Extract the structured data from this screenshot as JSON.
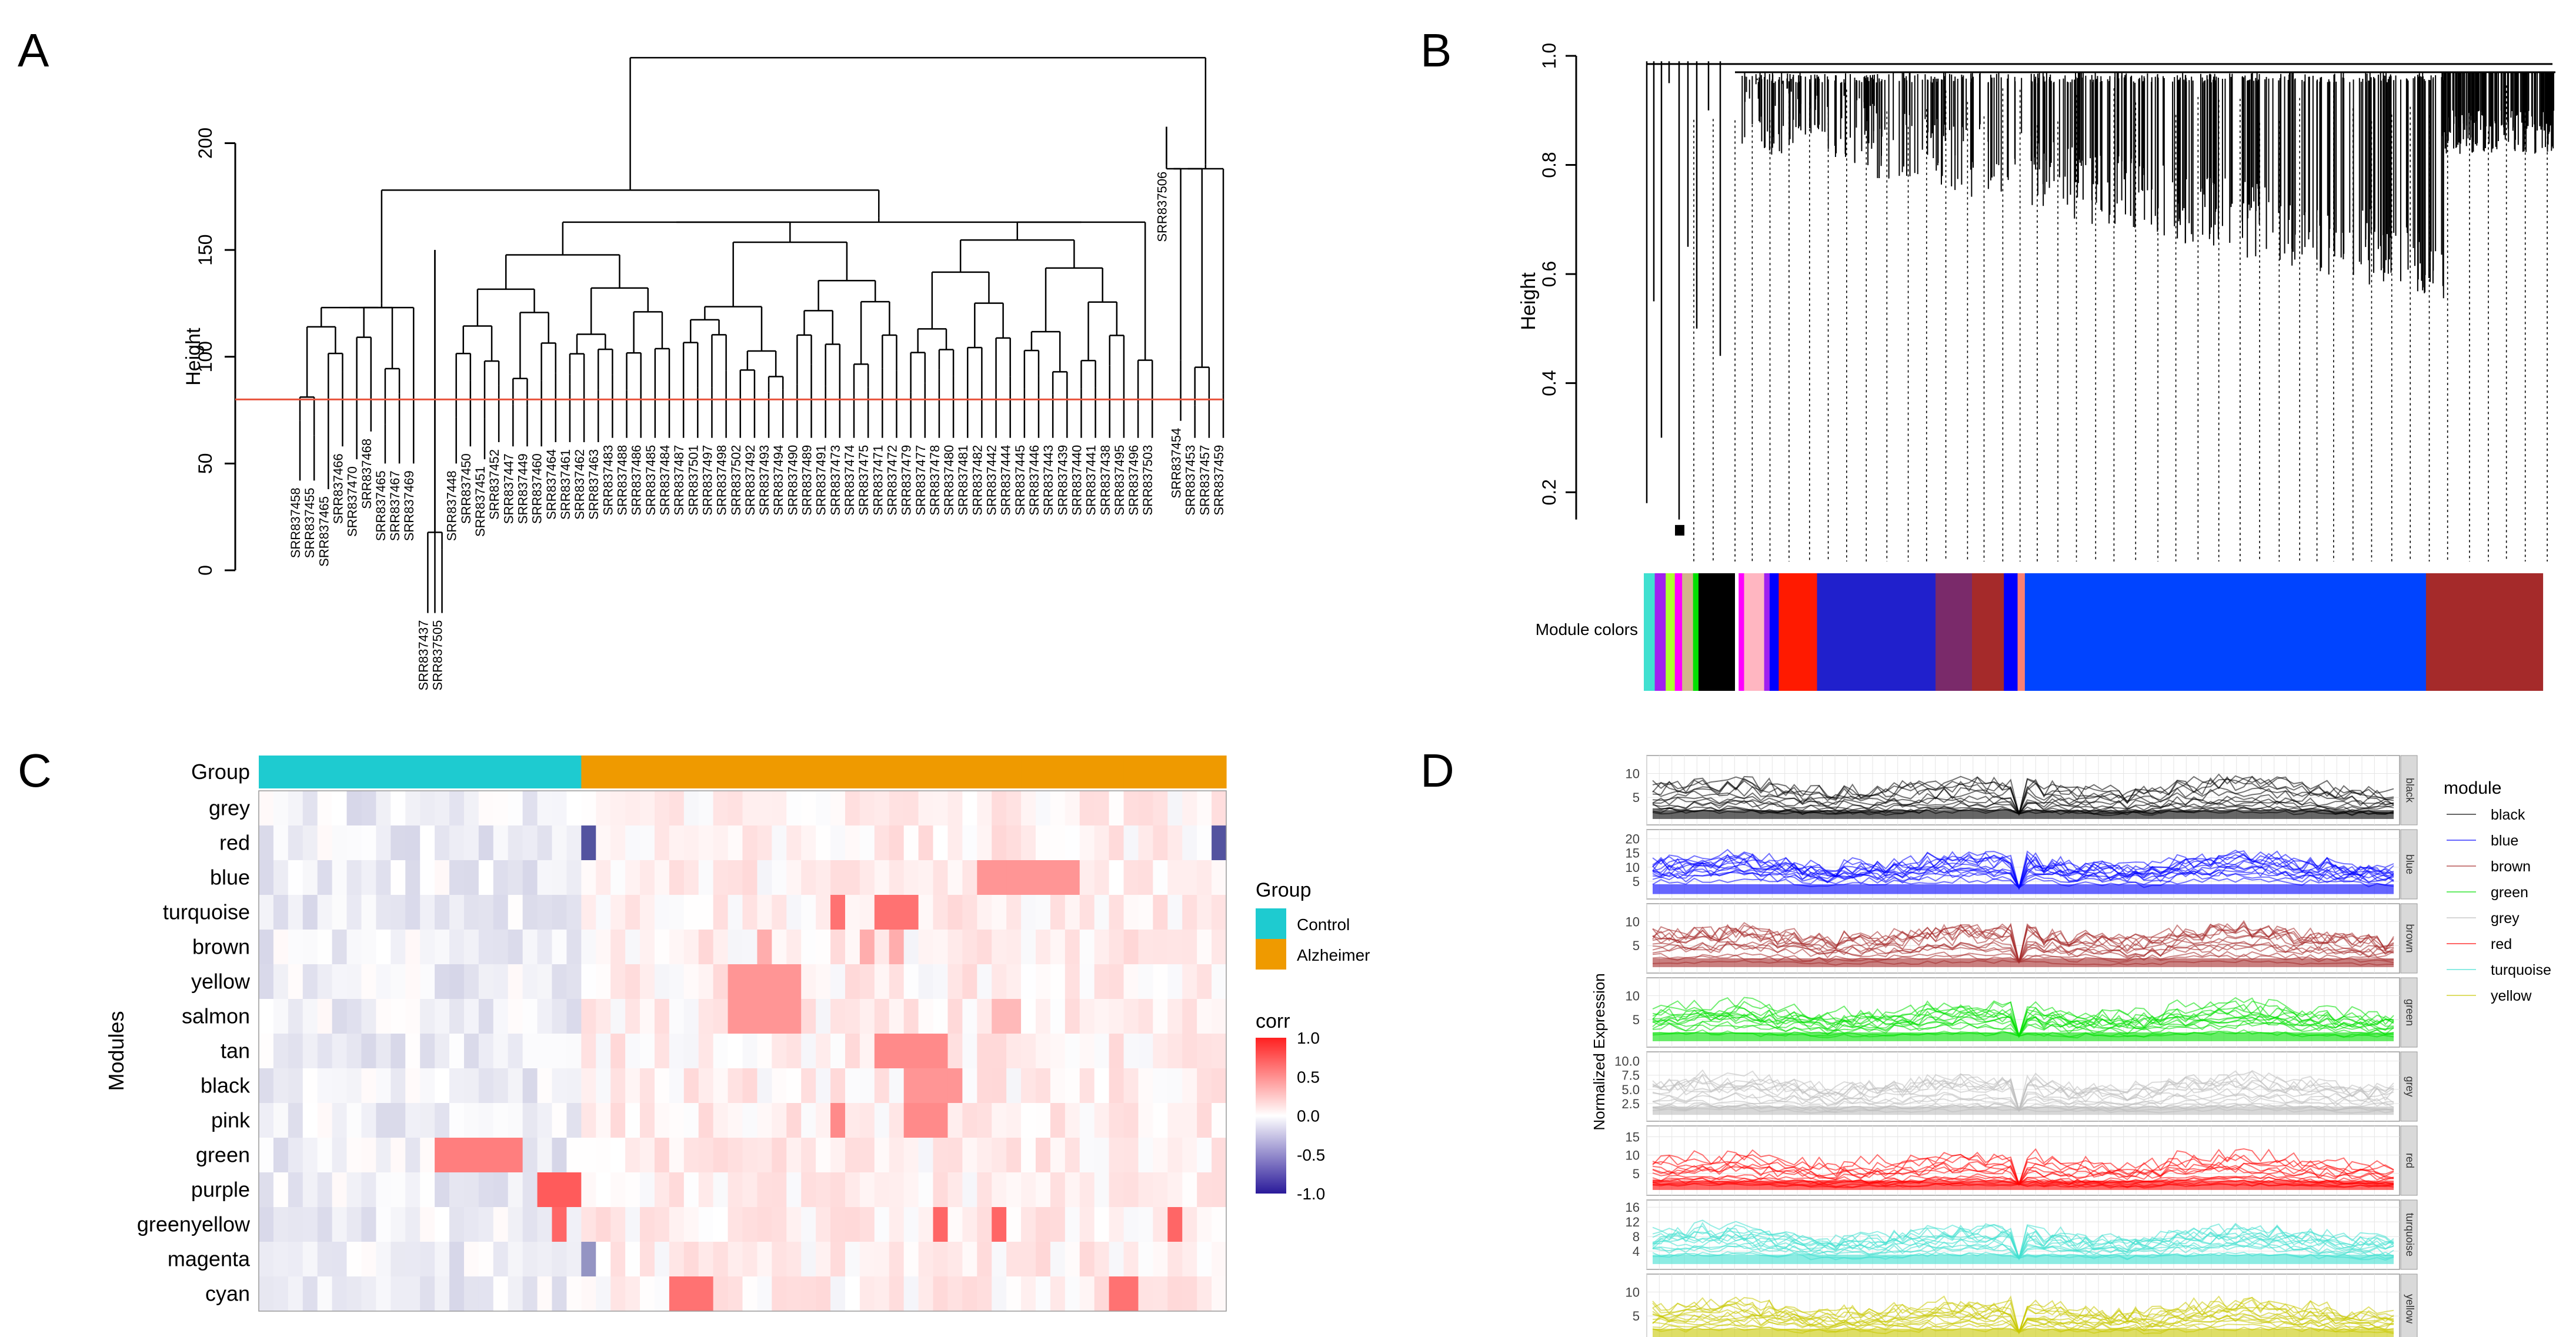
{
  "panels": {
    "a": {
      "letter": "A"
    },
    "b": {
      "letter": "B"
    },
    "c": {
      "letter": "C"
    },
    "d": {
      "letter": "D"
    }
  },
  "colors": {
    "black": "#000000",
    "blue": "#0000ff",
    "brown": "#a52a2a",
    "green": "#00e000",
    "grey": "#bdbdbd",
    "red": "#ff0000",
    "turquoise": "#40e0d0",
    "yellow": "#c8c800",
    "pink": "#ffb6c1",
    "purple": "#a020f0",
    "greenyellow": "#adff2f",
    "magenta": "#ff00ff",
    "tan": "#d2b48c",
    "salmon": "#fa8072",
    "cyan": "#00ffff",
    "control": "#1ecbd0",
    "alzheimer": "#ef9a00",
    "cutline": "#e8533c"
  },
  "chart_data": [
    {
      "type": "dendrogram",
      "panel": "A",
      "ylabel": "Height",
      "yticks": [
        0,
        50,
        100,
        150,
        200
      ],
      "ylim": [
        0,
        245
      ],
      "cut_height": 80,
      "cut_color": "#e8533c",
      "leaves": [
        {
          "label": "SRR837458",
          "h": 42
        },
        {
          "label": "SRR837455",
          "h": 42
        },
        {
          "label": "SRR837465",
          "h": 38
        },
        {
          "label": "SRR837466",
          "h": 58
        },
        {
          "label": "SRR837470",
          "h": 52
        },
        {
          "label": "SRR837468",
          "h": 65
        },
        {
          "label": "SRR837465",
          "h": 50
        },
        {
          "label": "SRR837467",
          "h": 50
        },
        {
          "label": "SRR837469",
          "h": 50
        },
        {
          "label": "SRR837437",
          "h": -20
        },
        {
          "label": "SRR837505",
          "h": -20
        },
        {
          "label": "SRR837448",
          "h": 50
        },
        {
          "label": "SRR837450",
          "h": 58
        },
        {
          "label": "SRR837451",
          "h": 52
        },
        {
          "label": "SRR837452",
          "h": 60
        },
        {
          "label": "SRR837447",
          "h": 58
        },
        {
          "label": "SRR837449",
          "h": 58
        },
        {
          "label": "SRR837460",
          "h": 58
        },
        {
          "label": "SRR837464",
          "h": 60
        },
        {
          "label": "SRR837461",
          "h": 60
        },
        {
          "label": "SRR837462",
          "h": 60
        },
        {
          "label": "SRR837463",
          "h": 60
        },
        {
          "label": "SRR837483",
          "h": 62
        },
        {
          "label": "SRR837488",
          "h": 62
        },
        {
          "label": "SRR837486",
          "h": 62
        },
        {
          "label": "SRR837485",
          "h": 62
        },
        {
          "label": "SRR837484",
          "h": 62
        },
        {
          "label": "SRR837487",
          "h": 62
        },
        {
          "label": "SRR837501",
          "h": 62
        },
        {
          "label": "SRR837497",
          "h": 62
        },
        {
          "label": "SRR837498",
          "h": 62
        },
        {
          "label": "SRR837502",
          "h": 62
        },
        {
          "label": "SRR837492",
          "h": 62
        },
        {
          "label": "SRR837493",
          "h": 62
        },
        {
          "label": "SRR837494",
          "h": 62
        },
        {
          "label": "SRR837490",
          "h": 62
        },
        {
          "label": "SRR837489",
          "h": 62
        },
        {
          "label": "SRR837491",
          "h": 62
        },
        {
          "label": "SRR837473",
          "h": 62
        },
        {
          "label": "SRR837474",
          "h": 62
        },
        {
          "label": "SRR837475",
          "h": 62
        },
        {
          "label": "SRR837471",
          "h": 62
        },
        {
          "label": "SRR837472",
          "h": 62
        },
        {
          "label": "SRR837479",
          "h": 62
        },
        {
          "label": "SRR837477",
          "h": 62
        },
        {
          "label": "SRR837478",
          "h": 62
        },
        {
          "label": "SRR837480",
          "h": 62
        },
        {
          "label": "SRR837481",
          "h": 62
        },
        {
          "label": "SRR837482",
          "h": 62
        },
        {
          "label": "SRR837442",
          "h": 62
        },
        {
          "label": "SRR837444",
          "h": 62
        },
        {
          "label": "SRR837445",
          "h": 62
        },
        {
          "label": "SRR837446",
          "h": 62
        },
        {
          "label": "SRR837443",
          "h": 62
        },
        {
          "label": "SRR837439",
          "h": 62
        },
        {
          "label": "SRR837440",
          "h": 62
        },
        {
          "label": "SRR837441",
          "h": 62
        },
        {
          "label": "SRR837438",
          "h": 62
        },
        {
          "label": "SRR837495",
          "h": 62
        },
        {
          "label": "SRR837496",
          "h": 62
        },
        {
          "label": "SRR837503",
          "h": 62
        },
        {
          "label": "SRR837506",
          "h": 190
        },
        {
          "label": "SRR837454",
          "h": 70
        },
        {
          "label": "SRR837453",
          "h": 62
        },
        {
          "label": "SRR837457",
          "h": 62
        },
        {
          "label": "SRR837459",
          "h": 62
        }
      ]
    },
    {
      "type": "dendrogram",
      "panel": "B",
      "ylabel": "Height",
      "yticks": [
        0.2,
        0.4,
        0.6,
        0.8,
        1.0
      ],
      "ylim": [
        0.1,
        1.0
      ],
      "colorbar_label": "Module colors",
      "module_bar": [
        {
          "color": "#40e0d0",
          "width": 0.012
        },
        {
          "color": "#a020f0",
          "width": 0.012
        },
        {
          "color": "#adff2f",
          "width": 0.01
        },
        {
          "color": "#ff00ff",
          "width": 0.008
        },
        {
          "color": "#d2b48c",
          "width": 0.012
        },
        {
          "color": "#00e000",
          "width": 0.006
        },
        {
          "color": "#000000",
          "width": 0.04
        },
        {
          "color": "#ffffff",
          "width": 0.004
        },
        {
          "color": "#ff00ff",
          "width": 0.006
        },
        {
          "color": "#ffb6c1",
          "width": 0.022
        },
        {
          "color": "#a020f0",
          "width": 0.006
        },
        {
          "color": "#0000ff",
          "width": 0.01
        },
        {
          "color": "#ff1a00",
          "width": 0.042
        },
        {
          "color": "#2020cc",
          "width": 0.13
        },
        {
          "color": "#7a2a6a",
          "width": 0.04
        },
        {
          "color": "#a52a2a",
          "width": 0.035
        },
        {
          "color": "#0000ff",
          "width": 0.015
        },
        {
          "color": "#fa8072",
          "width": 0.008
        },
        {
          "color": "#0044ff",
          "width": 0.44
        },
        {
          "color": "#a52a2a",
          "width": 0.128
        }
      ]
    },
    {
      "type": "heatmap",
      "panel": "C",
      "ylabel": "Modules",
      "annotation_row": "Group",
      "rows": [
        "grey",
        "red",
        "blue",
        "turquoise",
        "brown",
        "yellow",
        "salmon",
        "tan",
        "black",
        "pink",
        "green",
        "purple",
        "greenyellow",
        "magenta",
        "cyan"
      ],
      "n_columns": 66,
      "n_control": 22,
      "legend_group_title": "Group",
      "legend_groups": [
        "Control",
        "Alzheimer"
      ],
      "legend_corr_title": "corr",
      "legend_corr_ticks": [
        1.0,
        0.5,
        0.0,
        -0.5,
        -1.0
      ],
      "legend_corr_tick_labels": [
        "1.0",
        "0.5",
        "0.0",
        "-0.5",
        "-1.0"
      ],
      "hot_spots": [
        {
          "row": "red",
          "cols": [
            22
          ],
          "v": -0.8
        },
        {
          "row": "red",
          "cols": [
            65
          ],
          "v": -0.8
        },
        {
          "row": "blue",
          "cols": [
            49,
            50,
            51,
            52,
            53,
            54,
            55
          ],
          "v": 0.45
        },
        {
          "row": "turquoise",
          "cols": [
            39,
            42,
            43,
            44
          ],
          "v": 0.6
        },
        {
          "row": "brown",
          "cols": [
            34,
            41,
            43
          ],
          "v": 0.35
        },
        {
          "row": "yellow",
          "cols": [
            32,
            33,
            34,
            35,
            36
          ],
          "v": 0.45
        },
        {
          "row": "salmon",
          "cols": [
            32,
            33,
            34,
            35,
            36
          ],
          "v": 0.45
        },
        {
          "row": "salmon",
          "cols": [
            50,
            51
          ],
          "v": 0.3
        },
        {
          "row": "tan",
          "cols": [
            42,
            43,
            44,
            45,
            46
          ],
          "v": 0.5
        },
        {
          "row": "black",
          "cols": [
            44,
            45,
            46,
            47
          ],
          "v": 0.45
        },
        {
          "row": "pink",
          "cols": [
            39,
            44,
            45,
            46
          ],
          "v": 0.5
        },
        {
          "row": "green",
          "cols": [
            12,
            13,
            14,
            15,
            16,
            17
          ],
          "v": 0.55
        },
        {
          "row": "purple",
          "cols": [
            19,
            20,
            21
          ],
          "v": 0.7
        },
        {
          "row": "greenyellow",
          "cols": [
            20,
            46,
            50,
            62
          ],
          "v": 0.65
        },
        {
          "row": "magenta",
          "cols": [
            22
          ],
          "v": -0.5
        },
        {
          "row": "cyan",
          "cols": [
            28,
            29,
            30,
            58,
            59
          ],
          "v": 0.6
        }
      ]
    },
    {
      "type": "line",
      "panel": "D",
      "ylabel": "Normalized Expression",
      "legend_title": "module",
      "facets": [
        {
          "name": "black",
          "color": "#000000",
          "yticks": [
            5,
            10
          ],
          "ylim": [
            0,
            13
          ]
        },
        {
          "name": "blue",
          "color": "#0000ff",
          "yticks": [
            5,
            10,
            15,
            20
          ],
          "ylim": [
            0,
            22
          ]
        },
        {
          "name": "brown",
          "color": "#a52a2a",
          "yticks": [
            5,
            10
          ],
          "ylim": [
            0,
            13
          ]
        },
        {
          "name": "green",
          "color": "#00e000",
          "yticks": [
            5,
            10
          ],
          "ylim": [
            0,
            13
          ]
        },
        {
          "name": "grey",
          "color": "#bdbdbd",
          "yticks": [
            2.5,
            5.0,
            7.5,
            10.0
          ],
          "tick_labels": [
            "2.5",
            "5.0",
            "7.5",
            "10.0"
          ],
          "ylim": [
            0,
            11
          ]
        },
        {
          "name": "red",
          "color": "#ff0000",
          "yticks": [
            5,
            10,
            15
          ],
          "ylim": [
            0,
            17
          ]
        },
        {
          "name": "turquoise",
          "color": "#40e0d0",
          "yticks": [
            4,
            8,
            12,
            16
          ],
          "ylim": [
            0,
            17
          ]
        },
        {
          "name": "yellow",
          "color": "#c8c800",
          "yticks": [
            5,
            10
          ],
          "ylim": [
            0,
            13
          ]
        }
      ],
      "legend_entries": [
        "black",
        "blue",
        "brown",
        "green",
        "grey",
        "red",
        "turquoise",
        "yellow"
      ]
    }
  ]
}
